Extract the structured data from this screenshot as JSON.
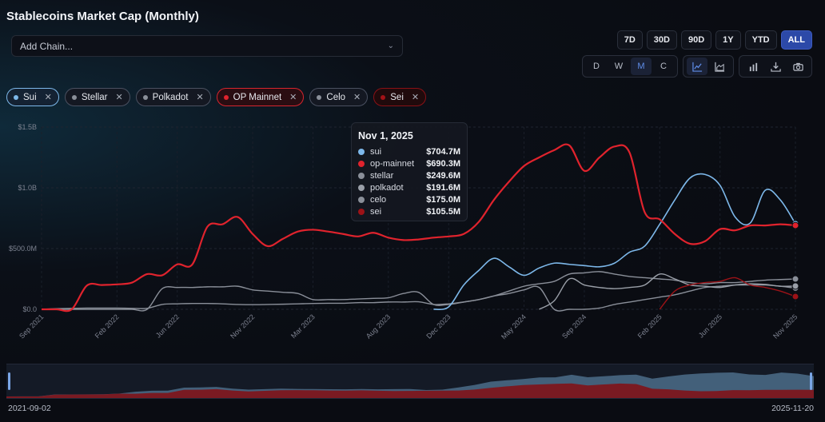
{
  "title": "Stablecoins Market Cap (Monthly)",
  "chain_select": {
    "placeholder": "Add Chain..."
  },
  "range_buttons": [
    "7D",
    "30D",
    "90D",
    "1Y",
    "YTD",
    "ALL"
  ],
  "active_range": "ALL",
  "interval_buttons": [
    "D",
    "W",
    "M",
    "C"
  ],
  "active_interval": "M",
  "chips": [
    {
      "label": "Sui",
      "color": "#7db8ea"
    },
    {
      "label": "Stellar",
      "color": "#8a8f99"
    },
    {
      "label": "Polkadot",
      "color": "#8a8f99"
    },
    {
      "label": "OP Mainnet",
      "color": "#e0232d"
    },
    {
      "label": "Celo",
      "color": "#8a8f99"
    },
    {
      "label": "Sei",
      "color": "#a31217"
    }
  ],
  "tooltip": {
    "date": "Nov 1, 2025",
    "rows": [
      {
        "name": "sui",
        "value": "$704.7M",
        "color": "#7db8ea"
      },
      {
        "name": "op-mainnet",
        "value": "$690.3M",
        "color": "#e0232d"
      },
      {
        "name": "stellar",
        "value": "$249.6M",
        "color": "#8a8f99"
      },
      {
        "name": "polkadot",
        "value": "$191.6M",
        "color": "#9a9fa8"
      },
      {
        "name": "celo",
        "value": "$175.0M",
        "color": "#8a8f99"
      },
      {
        "name": "sei",
        "value": "$105.5M",
        "color": "#9c1217"
      }
    ]
  },
  "navigator": {
    "start": "2021-09-02",
    "end": "2025-11-20"
  },
  "chart_data": {
    "type": "line",
    "x": [
      "2021-09",
      "2021-10",
      "2021-11",
      "2021-12",
      "2022-01",
      "2022-02",
      "2022-03",
      "2022-04",
      "2022-05",
      "2022-06",
      "2022-07",
      "2022-08",
      "2022-09",
      "2022-10",
      "2022-11",
      "2022-12",
      "2023-01",
      "2023-02",
      "2023-03",
      "2023-04",
      "2023-05",
      "2023-06",
      "2023-07",
      "2023-08",
      "2023-09",
      "2023-10",
      "2023-11",
      "2023-12",
      "2024-01",
      "2024-02",
      "2024-03",
      "2024-04",
      "2024-05",
      "2024-06",
      "2024-07",
      "2024-08",
      "2024-09",
      "2024-10",
      "2024-11",
      "2024-12",
      "2025-01",
      "2025-02",
      "2025-03",
      "2025-04",
      "2025-05",
      "2025-06",
      "2025-07",
      "2025-08",
      "2025-09",
      "2025-10",
      "2025-11"
    ],
    "x_tick_labels": [
      "Sep 2021",
      "Feb 2022",
      "Jun 2022",
      "Nov 2022",
      "Mar 2023",
      "Aug 2023",
      "Dec 2023",
      "May 2024",
      "Sep 2024",
      "Feb 2025",
      "Jun 2025",
      "Nov 2025"
    ],
    "y_tick_labels": [
      "$0.0",
      "$500.0M",
      "$1.0B",
      "$1.5B"
    ],
    "ylim": [
      0,
      1500
    ],
    "y_unit": "$M",
    "series": [
      {
        "name": "op-mainnet",
        "color": "#e0232d",
        "values": [
          0,
          0,
          0,
          195,
          200,
          205,
          220,
          290,
          280,
          370,
          370,
          680,
          700,
          760,
          620,
          520,
          580,
          640,
          655,
          640,
          620,
          600,
          630,
          590,
          570,
          575,
          590,
          600,
          620,
          720,
          900,
          1050,
          1180,
          1250,
          1310,
          1350,
          1140,
          1250,
          1340,
          1290,
          800,
          740,
          620,
          540,
          560,
          660,
          650,
          690,
          690,
          700,
          690.3
        ]
      },
      {
        "name": "sui",
        "color": "#7db8ea",
        "values": [
          null,
          null,
          null,
          null,
          null,
          null,
          null,
          null,
          null,
          null,
          null,
          null,
          null,
          null,
          null,
          null,
          null,
          null,
          null,
          null,
          null,
          null,
          null,
          null,
          null,
          null,
          0,
          20,
          200,
          320,
          420,
          350,
          280,
          340,
          380,
          370,
          360,
          350,
          380,
          470,
          520,
          700,
          900,
          1080,
          1110,
          1020,
          760,
          710,
          980,
          900,
          704.7
        ]
      },
      {
        "name": "stellar",
        "color": "#8a8f99",
        "values": [
          0,
          0,
          0,
          0,
          0,
          0,
          0,
          0,
          170,
          180,
          180,
          185,
          185,
          190,
          160,
          150,
          140,
          130,
          80,
          80,
          80,
          85,
          90,
          95,
          130,
          140,
          40,
          40,
          60,
          80,
          110,
          150,
          190,
          210,
          230,
          290,
          300,
          310,
          290,
          270,
          260,
          250,
          240,
          220,
          210,
          220,
          220,
          230,
          240,
          245,
          249.6
        ]
      },
      {
        "name": "polkadot",
        "color": "#9a9fa8",
        "values": [
          null,
          null,
          null,
          null,
          null,
          null,
          null,
          null,
          null,
          null,
          null,
          null,
          null,
          null,
          null,
          null,
          null,
          null,
          null,
          null,
          null,
          null,
          null,
          null,
          null,
          null,
          null,
          null,
          null,
          null,
          null,
          null,
          null,
          0,
          70,
          250,
          200,
          180,
          170,
          180,
          200,
          290,
          250,
          200,
          190,
          180,
          200,
          210,
          205,
          190,
          191.6
        ]
      },
      {
        "name": "celo",
        "color": "#8a8f99",
        "values": [
          0,
          5,
          8,
          10,
          10,
          10,
          8,
          8,
          40,
          45,
          48,
          48,
          45,
          40,
          38,
          40,
          42,
          45,
          48,
          50,
          50,
          55,
          55,
          60,
          60,
          62,
          40,
          45,
          60,
          80,
          110,
          130,
          160,
          180,
          0,
          0,
          0,
          10,
          40,
          60,
          80,
          100,
          120,
          150,
          180,
          190,
          200,
          200,
          200,
          190,
          175.0
        ]
      },
      {
        "name": "sei",
        "color": "#9c1217",
        "values": [
          null,
          null,
          null,
          null,
          null,
          null,
          null,
          null,
          null,
          null,
          null,
          null,
          null,
          null,
          null,
          null,
          null,
          null,
          null,
          null,
          null,
          null,
          null,
          null,
          null,
          null,
          null,
          null,
          null,
          null,
          null,
          null,
          null,
          null,
          null,
          null,
          null,
          null,
          null,
          null,
          null,
          0,
          150,
          200,
          220,
          230,
          260,
          200,
          180,
          150,
          105.5
        ]
      }
    ],
    "grid": true,
    "legend": "top"
  }
}
